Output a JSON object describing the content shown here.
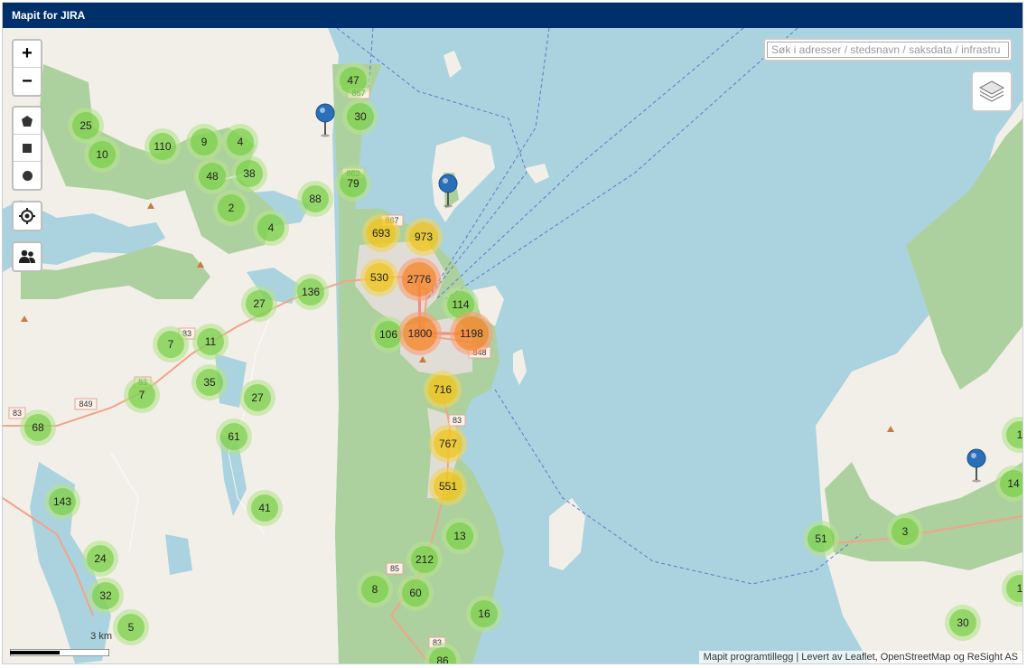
{
  "app": {
    "title": "Mapit for JIRA"
  },
  "controls": {
    "zoom_in": "+",
    "zoom_out": "−",
    "draw_polygon_icon": "polygon-icon",
    "draw_rectangle_icon": "square-icon",
    "draw_circle_icon": "circle-icon",
    "locate_icon": "crosshair-icon",
    "users_icon": "users-icon",
    "layers_icon": "layers-icon"
  },
  "search": {
    "placeholder": "Søk i adresser / stedsnavn / saksdata / infrastru",
    "value": ""
  },
  "scale": {
    "label": "3 km"
  },
  "attribution": "Mapit programtillegg | Levert av Leaflet, OpenStreetMap og ReSight AS",
  "colors": {
    "header": "#00306b",
    "water": "#aad3df",
    "land": "#f2efe9",
    "forest": "#add19e",
    "cluster_small": "#6ecc39",
    "cluster_medium": "#f0c20c",
    "cluster_large": "#f18017"
  },
  "road_labels": [
    "867",
    "862",
    "867",
    "83",
    "83",
    "849",
    "83",
    "848",
    "83",
    "85",
    "83"
  ],
  "clusters": [
    {
      "count": "47",
      "size": "small"
    },
    {
      "count": "30",
      "size": "small"
    },
    {
      "count": "25",
      "size": "small"
    },
    {
      "count": "10",
      "size": "small"
    },
    {
      "count": "110",
      "size": "small"
    },
    {
      "count": "9",
      "size": "small"
    },
    {
      "count": "4",
      "size": "small"
    },
    {
      "count": "48",
      "size": "small"
    },
    {
      "count": "38",
      "size": "small"
    },
    {
      "count": "79",
      "size": "small"
    },
    {
      "count": "88",
      "size": "small"
    },
    {
      "count": "2",
      "size": "small"
    },
    {
      "count": "4",
      "size": "small"
    },
    {
      "count": "693",
      "size": "medium"
    },
    {
      "count": "973",
      "size": "medium"
    },
    {
      "count": "530",
      "size": "medium"
    },
    {
      "count": "2776",
      "size": "large"
    },
    {
      "count": "136",
      "size": "small"
    },
    {
      "count": "27",
      "size": "small"
    },
    {
      "count": "114",
      "size": "small"
    },
    {
      "count": "106",
      "size": "small"
    },
    {
      "count": "1800",
      "size": "large"
    },
    {
      "count": "1198",
      "size": "large"
    },
    {
      "count": "7",
      "size": "small"
    },
    {
      "count": "11",
      "size": "small"
    },
    {
      "count": "35",
      "size": "small"
    },
    {
      "count": "7",
      "size": "small"
    },
    {
      "count": "27",
      "size": "small"
    },
    {
      "count": "716",
      "size": "medium"
    },
    {
      "count": "68",
      "size": "small"
    },
    {
      "count": "61",
      "size": "small"
    },
    {
      "count": "767",
      "size": "medium"
    },
    {
      "count": "551",
      "size": "medium"
    },
    {
      "count": "143",
      "size": "small"
    },
    {
      "count": "41",
      "size": "small"
    },
    {
      "count": "13",
      "size": "small"
    },
    {
      "count": "24",
      "size": "small"
    },
    {
      "count": "212",
      "size": "small"
    },
    {
      "count": "51",
      "size": "small"
    },
    {
      "count": "3",
      "size": "small"
    },
    {
      "count": "14",
      "size": "small"
    },
    {
      "count": "8",
      "size": "small"
    },
    {
      "count": "60",
      "size": "small"
    },
    {
      "count": "32",
      "size": "small"
    },
    {
      "count": "16",
      "size": "small"
    },
    {
      "count": "5",
      "size": "small"
    },
    {
      "count": "30",
      "size": "small"
    },
    {
      "count": "86",
      "size": "small"
    },
    {
      "count": "1",
      "size": "small"
    },
    {
      "count": "1",
      "size": "small"
    }
  ],
  "markers": [
    "pin-icon",
    "pin-icon",
    "pin-icon"
  ]
}
